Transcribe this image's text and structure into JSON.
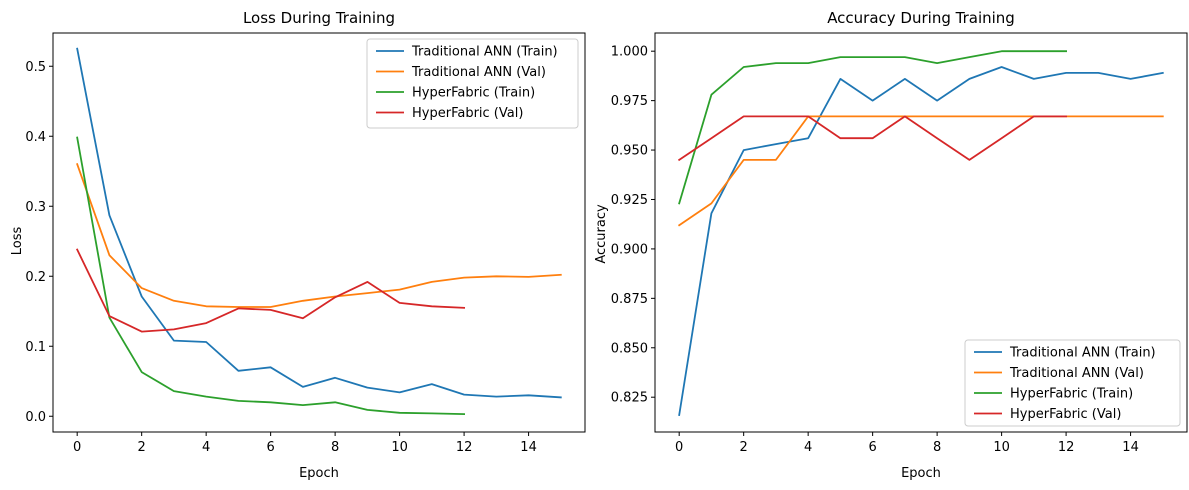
{
  "chart_data": [
    {
      "type": "line",
      "title": "Loss During Training",
      "xlabel": "Epoch",
      "ylabel": "Loss",
      "xlim": [
        -0.75,
        15.75
      ],
      "ylim": [
        -0.0225,
        0.5475
      ],
      "xticks": [
        0,
        2,
        4,
        6,
        8,
        10,
        12,
        14
      ],
      "yticks": [
        0.0,
        0.1,
        0.2,
        0.3,
        0.4,
        0.5
      ],
      "ytick_labels": [
        "0.0",
        "0.1",
        "0.2",
        "0.3",
        "0.4",
        "0.5"
      ],
      "grid": false,
      "legend_position": "top-right",
      "series": [
        {
          "name": "Traditional ANN (Train)",
          "color": "#1f77b4",
          "x": [
            0,
            1,
            2,
            3,
            4,
            5,
            6,
            7,
            8,
            9,
            10,
            11,
            12,
            13,
            14,
            15
          ],
          "values": [
            0.525,
            0.287,
            0.171,
            0.108,
            0.106,
            0.065,
            0.07,
            0.042,
            0.055,
            0.041,
            0.034,
            0.046,
            0.031,
            0.028,
            0.03,
            0.027
          ]
        },
        {
          "name": "Traditional ANN (Val)",
          "color": "#ff7f0e",
          "x": [
            0,
            1,
            2,
            3,
            4,
            5,
            6,
            7,
            8,
            9,
            10,
            11,
            12,
            13,
            14,
            15
          ],
          "values": [
            0.36,
            0.23,
            0.183,
            0.165,
            0.157,
            0.156,
            0.156,
            0.165,
            0.171,
            0.176,
            0.181,
            0.192,
            0.198,
            0.2,
            0.199,
            0.202
          ]
        },
        {
          "name": "HyperFabric (Train)",
          "color": "#2ca02c",
          "x": [
            0,
            1,
            2,
            3,
            4,
            5,
            6,
            7,
            8,
            9,
            10,
            11,
            12
          ],
          "values": [
            0.398,
            0.141,
            0.063,
            0.036,
            0.028,
            0.022,
            0.02,
            0.016,
            0.02,
            0.009,
            0.005,
            0.004,
            0.003
          ]
        },
        {
          "name": "HyperFabric (Val)",
          "color": "#d62728",
          "x": [
            0,
            1,
            2,
            3,
            4,
            5,
            6,
            7,
            8,
            9,
            10,
            11,
            12
          ],
          "values": [
            0.238,
            0.143,
            0.121,
            0.124,
            0.133,
            0.154,
            0.152,
            0.14,
            0.17,
            0.192,
            0.162,
            0.157,
            0.155
          ]
        }
      ]
    },
    {
      "type": "line",
      "title": "Accuracy During Training",
      "xlabel": "Epoch",
      "ylabel": "Accuracy",
      "xlim": [
        -0.75,
        15.75
      ],
      "ylim": [
        0.8074,
        1.0092
      ],
      "xticks": [
        0,
        2,
        4,
        6,
        8,
        10,
        12,
        14
      ],
      "yticks": [
        0.825,
        0.85,
        0.875,
        0.9,
        0.925,
        0.95,
        0.975,
        1.0
      ],
      "ytick_labels": [
        "0.825",
        "0.850",
        "0.875",
        "0.900",
        "0.925",
        "0.950",
        "0.975",
        "1.000"
      ],
      "grid": false,
      "legend_position": "bottom-right",
      "series": [
        {
          "name": "Traditional ANN (Train)",
          "color": "#1f77b4",
          "x": [
            0,
            1,
            2,
            3,
            4,
            5,
            6,
            7,
            8,
            9,
            10,
            11,
            12,
            13,
            14,
            15
          ],
          "values": [
            0.816,
            0.918,
            0.95,
            0.953,
            0.956,
            0.986,
            0.975,
            0.986,
            0.975,
            0.986,
            0.992,
            0.986,
            0.989,
            0.989,
            0.986,
            0.989
          ]
        },
        {
          "name": "Traditional ANN (Val)",
          "color": "#ff7f0e",
          "x": [
            0,
            1,
            2,
            3,
            4,
            5,
            6,
            7,
            8,
            9,
            10,
            11,
            12,
            13,
            14,
            15
          ],
          "values": [
            0.912,
            0.923,
            0.945,
            0.945,
            0.967,
            0.967,
            0.967,
            0.967,
            0.967,
            0.967,
            0.967,
            0.967,
            0.967,
            0.967,
            0.967,
            0.967
          ]
        },
        {
          "name": "HyperFabric (Train)",
          "color": "#2ca02c",
          "x": [
            0,
            1,
            2,
            3,
            4,
            5,
            6,
            7,
            8,
            9,
            10,
            11,
            12
          ],
          "values": [
            0.923,
            0.978,
            0.992,
            0.994,
            0.994,
            0.997,
            0.997,
            0.997,
            0.994,
            0.997,
            1.0,
            1.0,
            1.0
          ]
        },
        {
          "name": "HyperFabric (Val)",
          "color": "#d62728",
          "x": [
            0,
            1,
            2,
            3,
            4,
            5,
            6,
            7,
            8,
            9,
            10,
            11,
            12
          ],
          "values": [
            0.945,
            0.956,
            0.967,
            0.967,
            0.967,
            0.956,
            0.956,
            0.967,
            0.956,
            0.945,
            0.956,
            0.967,
            0.967
          ]
        }
      ]
    }
  ]
}
